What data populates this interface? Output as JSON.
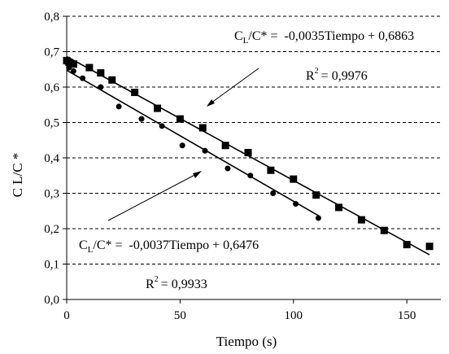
{
  "chart_data": {
    "type": "scatter",
    "xlabel": "Tiempo (s)",
    "ylabel": "C L/C *",
    "xlim": [
      0,
      165
    ],
    "ylim": [
      0,
      0.8
    ],
    "x_ticks": [
      "0",
      "50",
      "100",
      "150"
    ],
    "y_ticks": [
      "0,0",
      "0,1",
      "0,2",
      "0,3",
      "0,4",
      "0,5",
      "0,6",
      "0,7",
      "0,8"
    ],
    "grid": "horizontal dashed",
    "series": [
      {
        "marker": "square",
        "color": "#000000",
        "points": [
          [
            0,
            0.675
          ],
          [
            1,
            0.67
          ],
          [
            3,
            0.665
          ],
          [
            10,
            0.655
          ],
          [
            15,
            0.64
          ],
          [
            20,
            0.62
          ],
          [
            30,
            0.585
          ],
          [
            40,
            0.54
          ],
          [
            50,
            0.51
          ],
          [
            60,
            0.485
          ],
          [
            70,
            0.435
          ],
          [
            80,
            0.415
          ],
          [
            90,
            0.365
          ],
          [
            100,
            0.34
          ],
          [
            110,
            0.295
          ],
          [
            120,
            0.26
          ],
          [
            130,
            0.225
          ],
          [
            140,
            0.195
          ],
          [
            150,
            0.155
          ],
          [
            160,
            0.15
          ]
        ],
        "fit": {
          "slope": -0.0035,
          "intercept": 0.6863,
          "x_range": [
            0,
            160
          ]
        },
        "equation": "-0,0035Tiempo + 0,6863",
        "r2": "= 0,9976"
      },
      {
        "marker": "circle",
        "color": "#000000",
        "points": [
          [
            0,
            0.67
          ],
          [
            1,
            0.655
          ],
          [
            3,
            0.645
          ],
          [
            7,
            0.625
          ],
          [
            15,
            0.6
          ],
          [
            23,
            0.545
          ],
          [
            33,
            0.51
          ],
          [
            42,
            0.49
          ],
          [
            51,
            0.435
          ],
          [
            61,
            0.42
          ],
          [
            71,
            0.37
          ],
          [
            81,
            0.35
          ],
          [
            91,
            0.3
          ],
          [
            101,
            0.27
          ],
          [
            111,
            0.23
          ]
        ],
        "fit": {
          "slope": -0.0037,
          "intercept": 0.6476,
          "x_range": [
            0,
            111
          ]
        },
        "equation": "-0,0037Tiempo + 0,6476",
        "r2": "= 0,9933"
      }
    ],
    "annotations": {
      "eq_prefix": "C",
      "eq_sub": "L",
      "eq_rest": "/C* =",
      "r2_label": "R",
      "r2_sup": "2"
    }
  }
}
